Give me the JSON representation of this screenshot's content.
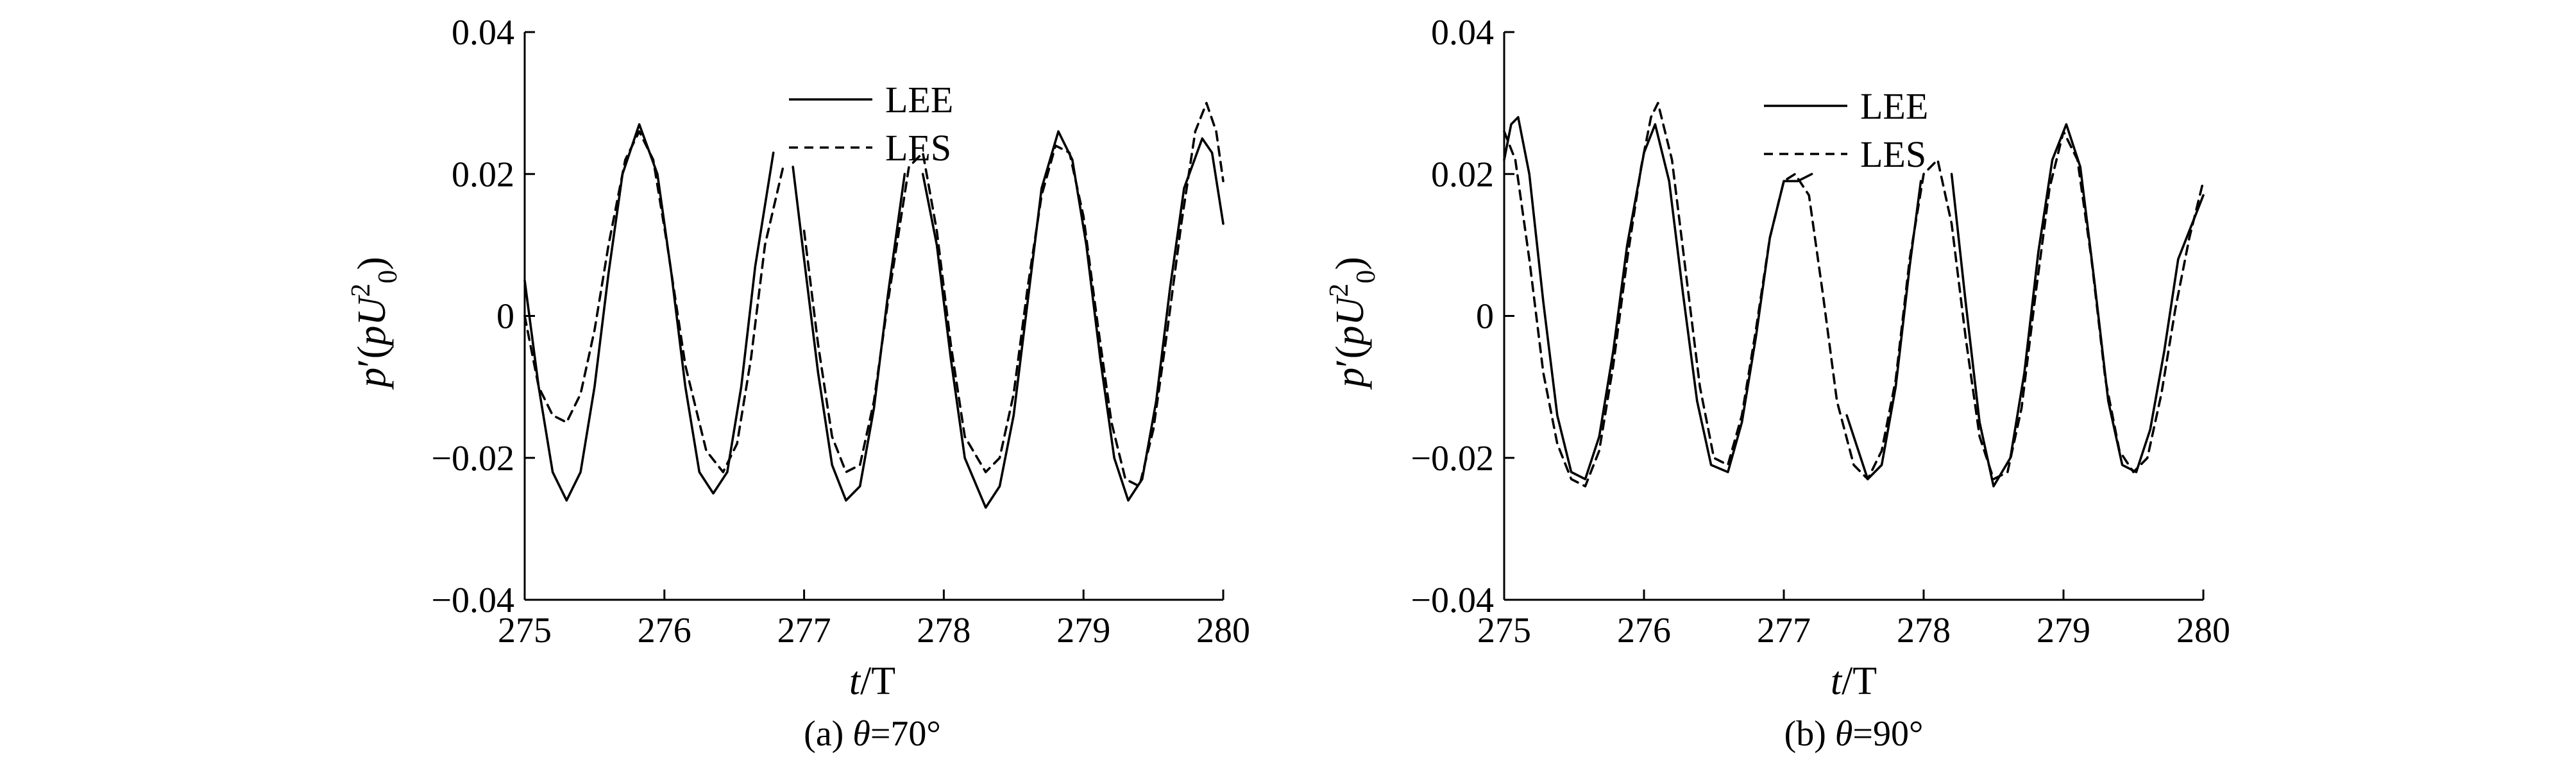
{
  "chart_data": [
    {
      "type": "line",
      "caption": {
        "prefix": "(a) ",
        "symbol": "θ",
        "suffix": "=70°"
      },
      "xlabel": {
        "main": "t",
        "rest": "/T"
      },
      "ylabel": {
        "p": "p",
        "mid": "′(",
        "rho": "p",
        "U": "U",
        "sup": "2",
        "sub": "0",
        "close": ")"
      },
      "xlim": [
        275,
        280
      ],
      "ylim": [
        -0.04,
        0.04
      ],
      "xticks": [
        "275",
        "276",
        "277",
        "278",
        "279",
        "280"
      ],
      "yticks": [
        "−0.04",
        "−0.02",
        "0",
        "0.02",
        "0.04"
      ],
      "ytick_values": [
        -0.04,
        -0.02,
        0,
        0.02,
        0.04
      ],
      "grid": false,
      "legend_position": "top-right",
      "series": [
        {
          "name": "LEE",
          "style": "solid",
          "color": "#000000",
          "segments": [
            [
              [
                275.0,
                0.005
              ],
              [
                275.1,
                -0.01
              ],
              [
                275.2,
                -0.022
              ],
              [
                275.3,
                -0.026
              ],
              [
                275.4,
                -0.022
              ],
              [
                275.5,
                -0.01
              ],
              [
                275.6,
                0.006
              ],
              [
                275.7,
                0.02
              ],
              [
                275.82,
                0.027
              ],
              [
                275.95,
                0.02
              ],
              [
                276.05,
                0.006
              ],
              [
                276.15,
                -0.01
              ],
              [
                276.25,
                -0.022
              ],
              [
                276.35,
                -0.025
              ],
              [
                276.45,
                -0.022
              ],
              [
                276.55,
                -0.01
              ],
              [
                276.65,
                0.007
              ],
              [
                276.78,
                0.023
              ]
            ],
            [
              [
                276.92,
                0.021
              ],
              [
                277.0,
                0.008
              ],
              [
                277.1,
                -0.008
              ],
              [
                277.2,
                -0.021
              ],
              [
                277.3,
                -0.026
              ],
              [
                277.4,
                -0.024
              ],
              [
                277.5,
                -0.013
              ],
              [
                277.6,
                0.003
              ],
              [
                277.72,
                0.02
              ]
            ],
            [
              [
                277.85,
                0.02
              ],
              [
                277.95,
                0.01
              ],
              [
                278.05,
                -0.006
              ],
              [
                278.15,
                -0.02
              ],
              [
                278.3,
                -0.027
              ],
              [
                278.4,
                -0.024
              ],
              [
                278.5,
                -0.014
              ],
              [
                278.6,
                0.002
              ],
              [
                278.7,
                0.018
              ],
              [
                278.82,
                0.026
              ],
              [
                278.92,
                0.022
              ],
              [
                279.02,
                0.01
              ],
              [
                279.12,
                -0.006
              ],
              [
                279.22,
                -0.02
              ],
              [
                279.32,
                -0.026
              ],
              [
                279.42,
                -0.023
              ],
              [
                279.52,
                -0.012
              ],
              [
                279.62,
                0.004
              ],
              [
                279.72,
                0.018
              ],
              [
                279.85,
                0.025
              ],
              [
                279.92,
                0.023
              ],
              [
                280.0,
                0.013
              ]
            ]
          ]
        },
        {
          "name": "LES",
          "style": "dashed",
          "color": "#000000",
          "segments": [
            [
              [
                275.0,
                0.0
              ],
              [
                275.1,
                -0.01
              ],
              [
                275.2,
                -0.014
              ],
              [
                275.3,
                -0.015
              ],
              [
                275.4,
                -0.011
              ],
              [
                275.5,
                -0.002
              ],
              [
                275.6,
                0.01
              ],
              [
                275.72,
                0.022
              ],
              [
                275.82,
                0.026
              ],
              [
                275.92,
                0.022
              ],
              [
                276.02,
                0.01
              ],
              [
                276.15,
                -0.007
              ],
              [
                276.3,
                -0.019
              ],
              [
                276.42,
                -0.022
              ],
              [
                276.52,
                -0.018
              ],
              [
                276.62,
                -0.006
              ],
              [
                276.72,
                0.01
              ],
              [
                276.85,
                0.021
              ]
            ],
            [
              [
                277.0,
                0.012
              ],
              [
                277.1,
                -0.004
              ],
              [
                277.2,
                -0.017
              ],
              [
                277.3,
                -0.022
              ],
              [
                277.4,
                -0.021
              ],
              [
                277.5,
                -0.012
              ],
              [
                277.6,
                0.002
              ],
              [
                277.75,
                0.021
              ],
              [
                277.85,
                0.023
              ],
              [
                277.95,
                0.012
              ],
              [
                278.05,
                -0.004
              ],
              [
                278.15,
                -0.017
              ],
              [
                278.3,
                -0.022
              ],
              [
                278.4,
                -0.02
              ],
              [
                278.5,
                -0.011
              ],
              [
                278.6,
                0.004
              ],
              [
                278.7,
                0.017
              ],
              [
                278.8,
                0.024
              ],
              [
                278.9,
                0.023
              ],
              [
                279.0,
                0.014
              ],
              [
                279.1,
                -0.001
              ],
              [
                279.2,
                -0.015
              ],
              [
                279.3,
                -0.023
              ],
              [
                279.4,
                -0.024
              ],
              [
                279.5,
                -0.016
              ],
              [
                279.6,
                -0.002
              ],
              [
                279.7,
                0.013
              ],
              [
                279.8,
                0.026
              ],
              [
                279.88,
                0.03
              ],
              [
                279.95,
                0.026
              ],
              [
                280.0,
                0.019
              ]
            ]
          ]
        }
      ]
    },
    {
      "type": "line",
      "caption": {
        "prefix": "(b) ",
        "symbol": "θ",
        "suffix": "=90°"
      },
      "xlabel": {
        "main": "t",
        "rest": "/T"
      },
      "ylabel": {
        "p": "p",
        "mid": "′(",
        "rho": "p",
        "U": "U",
        "sup": "2",
        "sub": "0",
        "close": ")"
      },
      "xlim": [
        275,
        280
      ],
      "ylim": [
        -0.04,
        0.04
      ],
      "xticks": [
        "275",
        "276",
        "277",
        "278",
        "279",
        "280"
      ],
      "yticks": [
        "−0.04",
        "−0.02",
        "0",
        "0.02",
        "0.04"
      ],
      "ytick_values": [
        -0.04,
        -0.02,
        0,
        0.02,
        0.04
      ],
      "grid": false,
      "legend_position": "top-center",
      "series": [
        {
          "name": "LEE",
          "style": "solid",
          "color": "#000000",
          "segments": [
            [
              [
                275.0,
                0.022
              ],
              [
                275.05,
                0.027
              ],
              [
                275.1,
                0.028
              ],
              [
                275.18,
                0.02
              ],
              [
                275.28,
                0.002
              ],
              [
                275.38,
                -0.014
              ],
              [
                275.48,
                -0.022
              ],
              [
                275.58,
                -0.023
              ],
              [
                275.68,
                -0.017
              ],
              [
                275.78,
                -0.005
              ],
              [
                275.88,
                0.01
              ],
              [
                276.0,
                0.023
              ],
              [
                276.08,
                0.027
              ],
              [
                276.18,
                0.019
              ],
              [
                276.28,
                0.003
              ],
              [
                276.38,
                -0.012
              ],
              [
                276.48,
                -0.021
              ],
              [
                276.6,
                -0.022
              ],
              [
                276.7,
                -0.015
              ],
              [
                276.8,
                -0.003
              ],
              [
                276.9,
                0.011
              ],
              [
                277.0,
                0.019
              ],
              [
                277.1,
                0.019
              ],
              [
                277.2,
                0.02
              ]
            ],
            [
              [
                277.45,
                -0.014
              ],
              [
                277.6,
                -0.023
              ],
              [
                277.7,
                -0.021
              ],
              [
                277.8,
                -0.01
              ],
              [
                277.9,
                0.007
              ],
              [
                277.98,
                0.019
              ]
            ],
            [
              [
                278.2,
                0.02
              ],
              [
                278.3,
                0.002
              ],
              [
                278.4,
                -0.015
              ],
              [
                278.5,
                -0.024
              ],
              [
                278.62,
                -0.02
              ],
              [
                278.72,
                -0.008
              ],
              [
                278.82,
                0.009
              ],
              [
                278.92,
                0.022
              ],
              [
                279.02,
                0.027
              ],
              [
                279.12,
                0.021
              ],
              [
                279.22,
                0.005
              ],
              [
                279.32,
                -0.012
              ],
              [
                279.42,
                -0.021
              ],
              [
                279.52,
                -0.022
              ],
              [
                279.62,
                -0.016
              ],
              [
                279.72,
                -0.005
              ],
              [
                279.82,
                0.008
              ],
              [
                279.92,
                0.013
              ],
              [
                280.0,
                0.017
              ]
            ]
          ]
        },
        {
          "name": "LES",
          "style": "dashed",
          "color": "#000000",
          "segments": [
            [
              [
                275.0,
                0.026
              ],
              [
                275.08,
                0.022
              ],
              [
                275.18,
                0.008
              ],
              [
                275.28,
                -0.008
              ],
              [
                275.38,
                -0.018
              ],
              [
                275.48,
                -0.023
              ],
              [
                275.58,
                -0.024
              ],
              [
                275.68,
                -0.019
              ],
              [
                275.78,
                -0.007
              ],
              [
                275.88,
                0.008
              ],
              [
                275.98,
                0.021
              ],
              [
                276.05,
                0.028
              ],
              [
                276.1,
                0.03
              ],
              [
                276.2,
                0.022
              ],
              [
                276.3,
                0.006
              ],
              [
                276.4,
                -0.01
              ],
              [
                276.5,
                -0.02
              ],
              [
                276.6,
                -0.021
              ],
              [
                276.7,
                -0.014
              ],
              [
                276.8,
                -0.002
              ],
              [
                276.9,
                0.011
              ],
              [
                277.0,
                0.019
              ],
              [
                277.08,
                0.02
              ],
              [
                277.18,
                0.017
              ],
              [
                277.28,
                0.003
              ],
              [
                277.38,
                -0.012
              ],
              [
                277.5,
                -0.021
              ],
              [
                277.6,
                -0.023
              ],
              [
                277.7,
                -0.019
              ],
              [
                277.8,
                -0.009
              ],
              [
                277.9,
                0.008
              ],
              [
                278.0,
                0.02
              ],
              [
                278.1,
                0.022
              ],
              [
                278.2,
                0.013
              ],
              [
                278.3,
                -0.003
              ],
              [
                278.4,
                -0.017
              ],
              [
                278.5,
                -0.023
              ],
              [
                278.6,
                -0.022
              ],
              [
                278.7,
                -0.013
              ],
              [
                278.8,
                0.003
              ],
              [
                278.9,
                0.018
              ],
              [
                279.0,
                0.026
              ],
              [
                279.1,
                0.022
              ],
              [
                279.2,
                0.008
              ],
              [
                279.3,
                -0.009
              ],
              [
                279.4,
                -0.019
              ],
              [
                279.5,
                -0.022
              ],
              [
                279.6,
                -0.02
              ],
              [
                279.7,
                -0.011
              ],
              [
                279.8,
                0.001
              ],
              [
                279.9,
                0.011
              ],
              [
                280.0,
                0.019
              ]
            ]
          ]
        }
      ]
    }
  ]
}
